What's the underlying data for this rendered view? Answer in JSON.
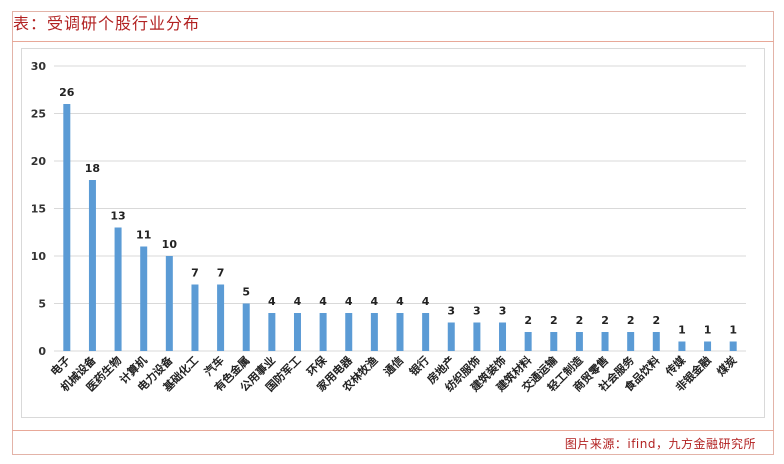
{
  "header": {
    "title": "表：受调研个股行业分布"
  },
  "footer": {
    "source": "图片来源：ifind，九方金融研究所"
  },
  "colors": {
    "bar": "#5b9bd5",
    "grid": "#d9d9d9",
    "accent": "#b22222"
  },
  "chart_data": {
    "type": "bar",
    "title": "",
    "xlabel": "",
    "ylabel": "",
    "ylim": [
      0,
      30
    ],
    "yticks": [
      0,
      5,
      10,
      15,
      20,
      25,
      30
    ],
    "grid": true,
    "legend": "none",
    "data_labels": true,
    "categories": [
      "电子",
      "机械设备",
      "医药生物",
      "计算机",
      "电力设备",
      "基础化工",
      "汽车",
      "有色金属",
      "公用事业",
      "国防军工",
      "环保",
      "家用电器",
      "农林牧渔",
      "通信",
      "银行",
      "房地产",
      "纺织服饰",
      "建筑装饰",
      "建筑材料",
      "交通运输",
      "轻工制造",
      "商贸零售",
      "社会服务",
      "食品饮料",
      "传媒",
      "非银金融",
      "煤炭"
    ],
    "values": [
      26,
      18,
      13,
      11,
      10,
      7,
      7,
      5,
      4,
      4,
      4,
      4,
      4,
      4,
      4,
      3,
      3,
      3,
      2,
      2,
      2,
      2,
      2,
      2,
      1,
      1,
      1
    ]
  }
}
